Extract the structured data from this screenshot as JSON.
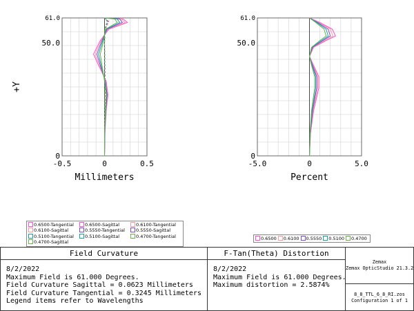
{
  "chart_data": [
    {
      "type": "line",
      "title": "",
      "xlabel": "Millimeters",
      "ylabel": "+Y",
      "xlim": [
        -0.5,
        0.5
      ],
      "ylim": [
        0,
        61.0
      ],
      "x_ticks": [
        "-0.5",
        "0",
        "0.5"
      ],
      "y_ticks": [
        "0",
        "50.0",
        "61.0"
      ],
      "grid": true,
      "series": [
        {
          "name": "0.6500-Tangential",
          "color": "#ff4fd2",
          "dash": false,
          "points": [
            [
              0,
              0
            ],
            [
              0.005,
              10
            ],
            [
              0.02,
              20
            ],
            [
              0.04,
              27
            ],
            [
              0.02,
              33
            ],
            [
              -0.07,
              40
            ],
            [
              -0.13,
              45
            ],
            [
              -0.05,
              51
            ],
            [
              0.05,
              56
            ],
            [
              0.27,
              59
            ],
            [
              0.22,
              60.5
            ],
            [
              0,
              61
            ]
          ]
        },
        {
          "name": "0.6500-Sagittal",
          "color": "#ff4fd2",
          "dash": true,
          "points": [
            [
              0,
              0
            ],
            [
              0.002,
              10
            ],
            [
              0.005,
              20
            ],
            [
              0.01,
              30
            ],
            [
              0.005,
              40
            ],
            [
              0,
              50
            ],
            [
              0.01,
              56
            ],
            [
              0.05,
              59.5
            ],
            [
              0,
              61
            ]
          ]
        },
        {
          "name": "0.6100-Tangential",
          "color": "#ff9a9a",
          "dash": false,
          "points": [
            [
              0,
              0
            ],
            [
              0.004,
              10
            ],
            [
              0.018,
              20
            ],
            [
              0.035,
              27
            ],
            [
              0.015,
              33
            ],
            [
              -0.06,
              40
            ],
            [
              -0.11,
              45
            ],
            [
              -0.04,
              51
            ],
            [
              0.04,
              56
            ],
            [
              0.24,
              59
            ],
            [
              0.2,
              60.5
            ],
            [
              0,
              61
            ]
          ]
        },
        {
          "name": "0.6100-Sagittal",
          "color": "#ff9a9a",
          "dash": true,
          "points": [
            [
              0,
              0
            ],
            [
              0.002,
              10
            ],
            [
              0.004,
              20
            ],
            [
              0.008,
              30
            ],
            [
              0.004,
              40
            ],
            [
              0,
              50
            ],
            [
              0.008,
              56
            ],
            [
              0.045,
              59.5
            ],
            [
              0,
              61
            ]
          ]
        },
        {
          "name": "0.5550-Tangential",
          "color": "#7a4bdc",
          "dash": false,
          "points": [
            [
              0,
              0
            ],
            [
              0.003,
              10
            ],
            [
              0.015,
              20
            ],
            [
              0.03,
              27
            ],
            [
              0.01,
              33
            ],
            [
              -0.05,
              40
            ],
            [
              -0.09,
              45
            ],
            [
              -0.03,
              51
            ],
            [
              0.03,
              56
            ],
            [
              0.21,
              59
            ],
            [
              0.18,
              60.5
            ],
            [
              0,
              61
            ]
          ]
        },
        {
          "name": "0.5550-Sagittal",
          "color": "#7a4bdc",
          "dash": true,
          "points": [
            [
              0,
              0
            ],
            [
              0.002,
              10
            ],
            [
              0.003,
              20
            ],
            [
              0.006,
              30
            ],
            [
              0.003,
              40
            ],
            [
              0,
              50
            ],
            [
              0.006,
              56
            ],
            [
              0.04,
              59.5
            ],
            [
              0,
              61
            ]
          ]
        },
        {
          "name": "0.5100-Tangential",
          "color": "#19a0a0",
          "dash": false,
          "points": [
            [
              0,
              0
            ],
            [
              0.002,
              10
            ],
            [
              0.012,
              20
            ],
            [
              0.025,
              27
            ],
            [
              0.005,
              33
            ],
            [
              -0.04,
              40
            ],
            [
              -0.07,
              45
            ],
            [
              -0.02,
              51
            ],
            [
              0.02,
              56
            ],
            [
              0.18,
              59
            ],
            [
              0.15,
              60.5
            ],
            [
              0,
              61
            ]
          ]
        },
        {
          "name": "0.5100-Sagittal",
          "color": "#19a0a0",
          "dash": true,
          "points": [
            [
              0,
              0
            ],
            [
              0.001,
              10
            ],
            [
              0.002,
              20
            ],
            [
              0.005,
              30
            ],
            [
              0.002,
              40
            ],
            [
              0,
              50
            ],
            [
              0.005,
              56
            ],
            [
              0.035,
              59.5
            ],
            [
              0,
              61
            ]
          ]
        },
        {
          "name": "0.4700-Tangential",
          "color": "#6ab04c",
          "dash": false,
          "points": [
            [
              0,
              0
            ],
            [
              0.001,
              10
            ],
            [
              0.01,
              20
            ],
            [
              0.02,
              27
            ],
            [
              0,
              33
            ],
            [
              -0.03,
              40
            ],
            [
              -0.05,
              45
            ],
            [
              -0.01,
              51
            ],
            [
              0.01,
              56
            ],
            [
              0.15,
              59
            ],
            [
              0.12,
              60.5
            ],
            [
              0,
              61
            ]
          ]
        },
        {
          "name": "0.4700-Sagittal",
          "color": "#6ab04c",
          "dash": true,
          "points": [
            [
              0,
              0
            ],
            [
              0.001,
              10
            ],
            [
              0.002,
              20
            ],
            [
              0.004,
              30
            ],
            [
              0.002,
              40
            ],
            [
              0,
              50
            ],
            [
              0.004,
              56
            ],
            [
              0.03,
              59.5
            ],
            [
              0,
              61
            ]
          ]
        }
      ]
    },
    {
      "type": "line",
      "title": "",
      "xlabel": "Percent",
      "ylabel": "",
      "xlim": [
        -5.0,
        5.0
      ],
      "ylim": [
        0,
        61.0
      ],
      "x_ticks": [
        "-5.0",
        "0",
        "5.0"
      ],
      "y_ticks": [
        "0",
        "50.0",
        "61.0"
      ],
      "grid": true,
      "series": [
        {
          "name": "0.6500",
          "color": "#ff4fd2",
          "dash": false,
          "points": [
            [
              0,
              0
            ],
            [
              0.1,
              10
            ],
            [
              0.4,
              20
            ],
            [
              0.9,
              30
            ],
            [
              0.9,
              35
            ],
            [
              0.4,
              40
            ],
            [
              0,
              44
            ],
            [
              0.4,
              48
            ],
            [
              1.6,
              51
            ],
            [
              2.5,
              53
            ],
            [
              2.2,
              56
            ],
            [
              1,
              59
            ],
            [
              0,
              61
            ]
          ]
        },
        {
          "name": "0.6100",
          "color": "#ff9a9a",
          "dash": false,
          "points": [
            [
              0,
              0
            ],
            [
              0.1,
              10
            ],
            [
              0.35,
              20
            ],
            [
              0.8,
              30
            ],
            [
              0.8,
              35
            ],
            [
              0.35,
              40
            ],
            [
              0,
              44
            ],
            [
              0.35,
              48
            ],
            [
              1.45,
              51
            ],
            [
              2.25,
              53
            ],
            [
              2.0,
              56
            ],
            [
              0.9,
              59
            ],
            [
              0,
              61
            ]
          ]
        },
        {
          "name": "0.5550",
          "color": "#7a4bdc",
          "dash": false,
          "points": [
            [
              0,
              0
            ],
            [
              0.08,
              10
            ],
            [
              0.3,
              20
            ],
            [
              0.7,
              30
            ],
            [
              0.7,
              35
            ],
            [
              0.3,
              40
            ],
            [
              0,
              44
            ],
            [
              0.3,
              48
            ],
            [
              1.3,
              51
            ],
            [
              2.0,
              53
            ],
            [
              1.8,
              56
            ],
            [
              0.8,
              59
            ],
            [
              0,
              61
            ]
          ]
        },
        {
          "name": "0.5100",
          "color": "#19a0a0",
          "dash": false,
          "points": [
            [
              0,
              0
            ],
            [
              0.06,
              10
            ],
            [
              0.25,
              20
            ],
            [
              0.6,
              30
            ],
            [
              0.6,
              35
            ],
            [
              0.25,
              40
            ],
            [
              0,
              44
            ],
            [
              0.25,
              48
            ],
            [
              1.15,
              51
            ],
            [
              1.8,
              53
            ],
            [
              1.6,
              56
            ],
            [
              0.7,
              59
            ],
            [
              0,
              61
            ]
          ]
        },
        {
          "name": "0.4700",
          "color": "#6ab04c",
          "dash": false,
          "points": [
            [
              0,
              0
            ],
            [
              0.05,
              10
            ],
            [
              0.2,
              20
            ],
            [
              0.5,
              30
            ],
            [
              0.5,
              35
            ],
            [
              0.2,
              40
            ],
            [
              0,
              44
            ],
            [
              0.2,
              48
            ],
            [
              1.0,
              51
            ],
            [
              1.6,
              53
            ],
            [
              1.4,
              56
            ],
            [
              0.6,
              59
            ],
            [
              0,
              61
            ]
          ]
        }
      ]
    }
  ],
  "legend1_items": [
    "0.6500-Tangential",
    "0.6500-Sagittal",
    "0.6100-Tangential",
    "0.6100-Sagittal",
    "0.5550-Tangential",
    "0.5550-Sagittal",
    "0.5100-Tangential",
    "0.5100-Sagittal",
    "0.4700-Tangential",
    "0.4700-Sagittal"
  ],
  "legend2_items": [
    "0.6500",
    "0.6100",
    "0.5550",
    "0.5100",
    "0.4700"
  ],
  "legend_colors": [
    "#ff4fd2",
    "#ff9a9a",
    "#7a4bdc",
    "#19a0a0",
    "#6ab04c"
  ],
  "panel_left": {
    "title": "Field Curvature",
    "lines": [
      "8/2/2022",
      "Maximum Field is 61.000 Degrees.",
      "Field Curvature Sagittal = 0.0623 Millimeters",
      "Field Curvature Tangential = 0.3245 Millimeters",
      "Legend items refer to Wavelengths"
    ]
  },
  "panel_mid": {
    "title": "F-Tan(Theta) Distortion",
    "lines": [
      "8/2/2022",
      "Maximum Field is 61.000 Degrees.",
      "Maximum distortion = 2.5874%"
    ]
  },
  "panel_right": {
    "top_lines": [
      "Zemax",
      "Zemax OpticStudio 21.3.2"
    ],
    "file": "8_8_TTL_6_8_RI.zos",
    "config": "Configuration 1 of 1"
  }
}
